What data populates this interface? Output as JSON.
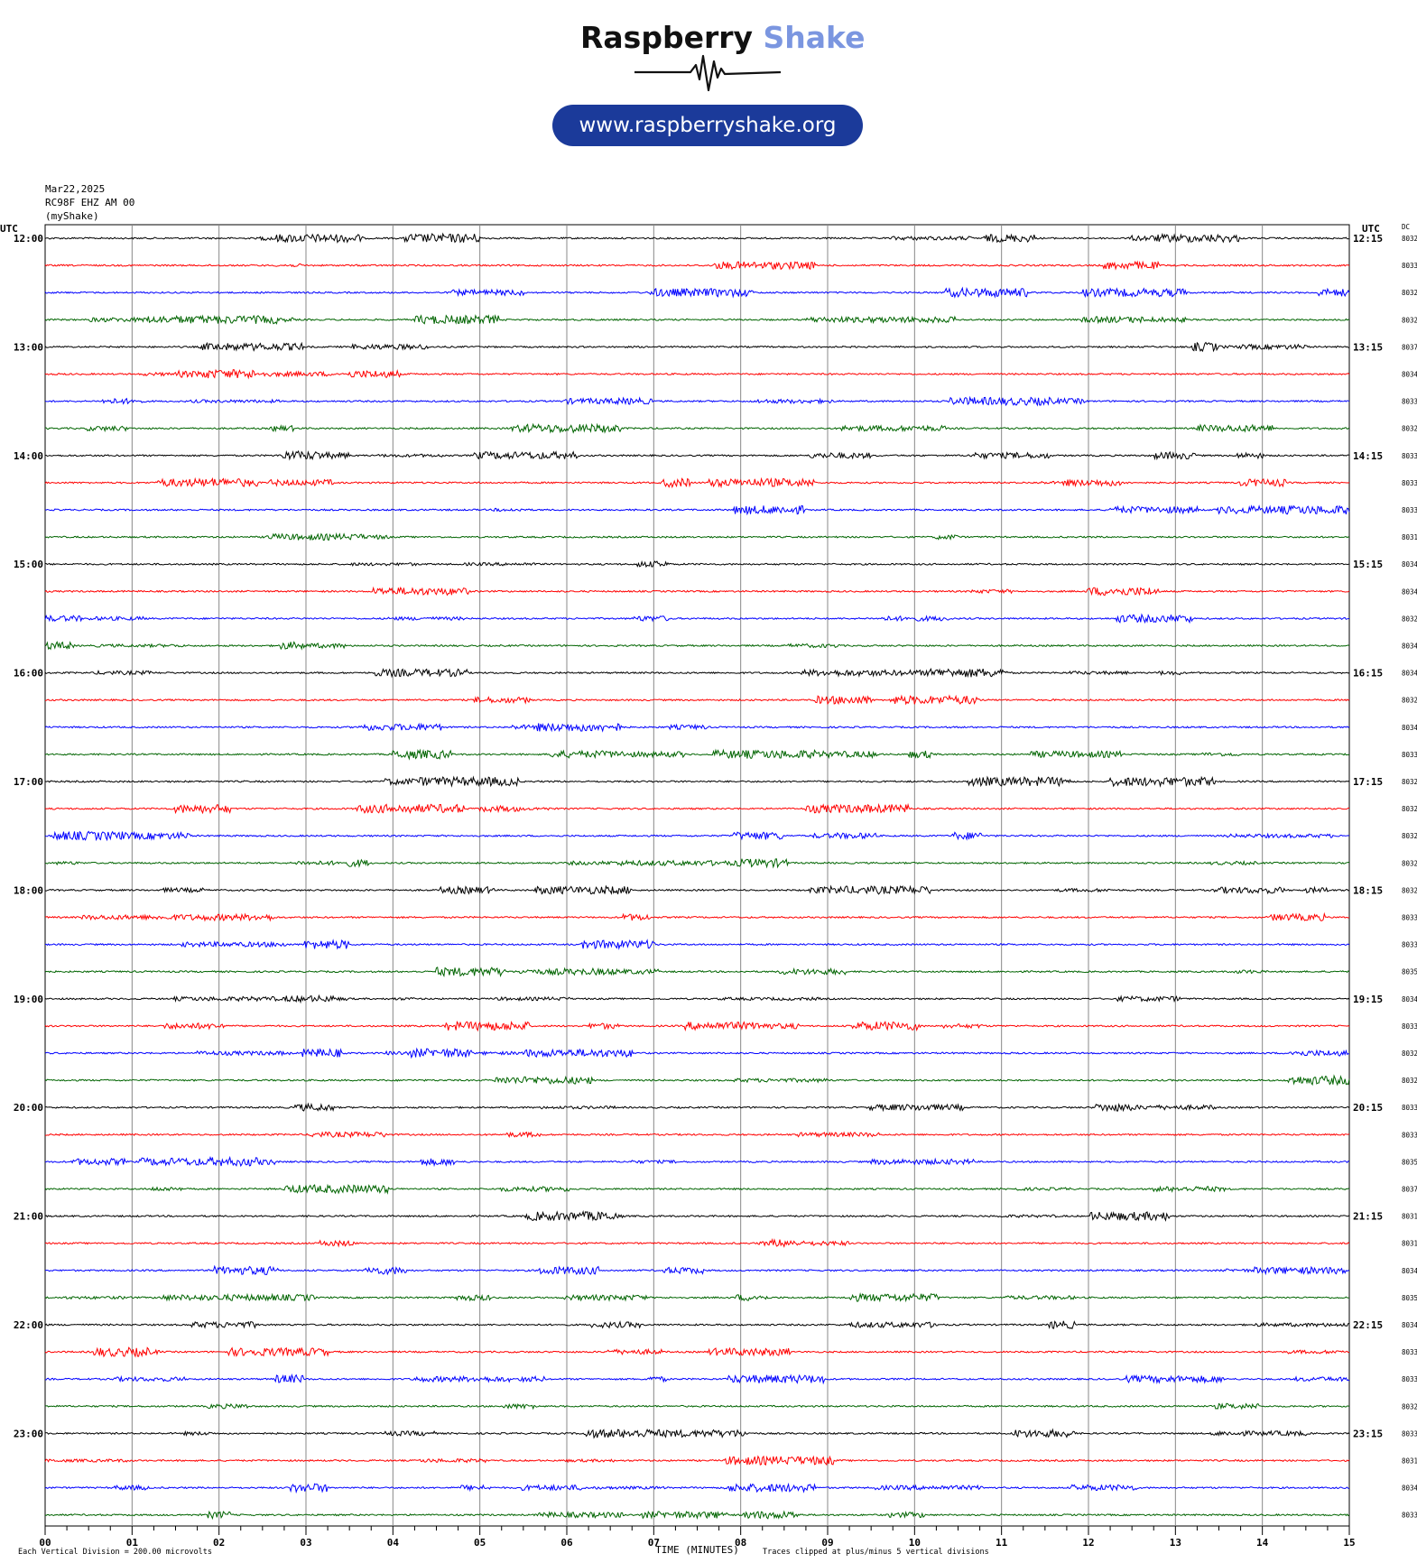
{
  "logo": {
    "brand_dark": "Raspberry",
    "brand_light": "Shake",
    "url": "www.raspberryshake.org"
  },
  "header": {
    "date": "Mar22,2025",
    "station": "RC98F EHZ AM 00",
    "network": "(myShake)"
  },
  "footer": {
    "scale_note": "Each Vertical Division =  200.00 microvolts",
    "xlabel": "TIME (MINUTES)",
    "clip_note": "Traces clipped at plus/minus 5 vertical divisions"
  },
  "colors": {
    "trace_cycle": [
      "#000000",
      "#ff0000",
      "#0000ff",
      "#006400"
    ],
    "grid": "#888888"
  },
  "chart_data": {
    "type": "line",
    "title": "",
    "xlabel": "TIME (MINUTES)",
    "xlim": [
      0,
      15
    ],
    "x_ticks": [
      "00",
      "01",
      "02",
      "03",
      "04",
      "05",
      "06",
      "07",
      "08",
      "09",
      "10",
      "11",
      "12",
      "13",
      "14",
      "15"
    ],
    "left_axis_label": "UTC",
    "right_axis_label": "UTC",
    "dc_label": "DC",
    "rows": [
      {
        "left": "12:00",
        "right": "12:15",
        "dc": "8032"
      },
      {
        "left": "",
        "right": "",
        "dc": "8033"
      },
      {
        "left": "",
        "right": "",
        "dc": "8032"
      },
      {
        "left": "",
        "right": "",
        "dc": "8032"
      },
      {
        "left": "13:00",
        "right": "13:15",
        "dc": "8037"
      },
      {
        "left": "",
        "right": "",
        "dc": "8034"
      },
      {
        "left": "",
        "right": "",
        "dc": "8033"
      },
      {
        "left": "",
        "right": "",
        "dc": "8032"
      },
      {
        "left": "14:00",
        "right": "14:15",
        "dc": "8033"
      },
      {
        "left": "",
        "right": "",
        "dc": "8033"
      },
      {
        "left": "",
        "right": "",
        "dc": "8033"
      },
      {
        "left": "",
        "right": "",
        "dc": "8031"
      },
      {
        "left": "15:00",
        "right": "15:15",
        "dc": "8034"
      },
      {
        "left": "",
        "right": "",
        "dc": "8034"
      },
      {
        "left": "",
        "right": "",
        "dc": "8032"
      },
      {
        "left": "",
        "right": "",
        "dc": "8034"
      },
      {
        "left": "16:00",
        "right": "16:15",
        "dc": "8034"
      },
      {
        "left": "",
        "right": "",
        "dc": "8032"
      },
      {
        "left": "",
        "right": "",
        "dc": "8034"
      },
      {
        "left": "",
        "right": "",
        "dc": "8033"
      },
      {
        "left": "17:00",
        "right": "17:15",
        "dc": "8032"
      },
      {
        "left": "",
        "right": "",
        "dc": "8032"
      },
      {
        "left": "",
        "right": "",
        "dc": "8032"
      },
      {
        "left": "",
        "right": "",
        "dc": "8032"
      },
      {
        "left": "18:00",
        "right": "18:15",
        "dc": "8032"
      },
      {
        "left": "",
        "right": "",
        "dc": "8033"
      },
      {
        "left": "",
        "right": "",
        "dc": "8033"
      },
      {
        "left": "",
        "right": "",
        "dc": "8035"
      },
      {
        "left": "19:00",
        "right": "19:15",
        "dc": "8034"
      },
      {
        "left": "",
        "right": "",
        "dc": "8033"
      },
      {
        "left": "",
        "right": "",
        "dc": "8032"
      },
      {
        "left": "",
        "right": "",
        "dc": "8032"
      },
      {
        "left": "20:00",
        "right": "20:15",
        "dc": "8033"
      },
      {
        "left": "",
        "right": "",
        "dc": "8033"
      },
      {
        "left": "",
        "right": "",
        "dc": "8035"
      },
      {
        "left": "",
        "right": "",
        "dc": "8037"
      },
      {
        "left": "21:00",
        "right": "21:15",
        "dc": "8031"
      },
      {
        "left": "",
        "right": "",
        "dc": "8031"
      },
      {
        "left": "",
        "right": "",
        "dc": "8034"
      },
      {
        "left": "",
        "right": "",
        "dc": "8035"
      },
      {
        "left": "22:00",
        "right": "22:15",
        "dc": "8034"
      },
      {
        "left": "",
        "right": "",
        "dc": "8033"
      },
      {
        "left": "",
        "right": "",
        "dc": "8033"
      },
      {
        "left": "",
        "right": "",
        "dc": "8032"
      },
      {
        "left": "23:00",
        "right": "23:15",
        "dc": "8033"
      },
      {
        "left": "",
        "right": "",
        "dc": "8031"
      },
      {
        "left": "",
        "right": "",
        "dc": "8034"
      },
      {
        "left": "",
        "right": "",
        "dc": "8033"
      }
    ]
  }
}
